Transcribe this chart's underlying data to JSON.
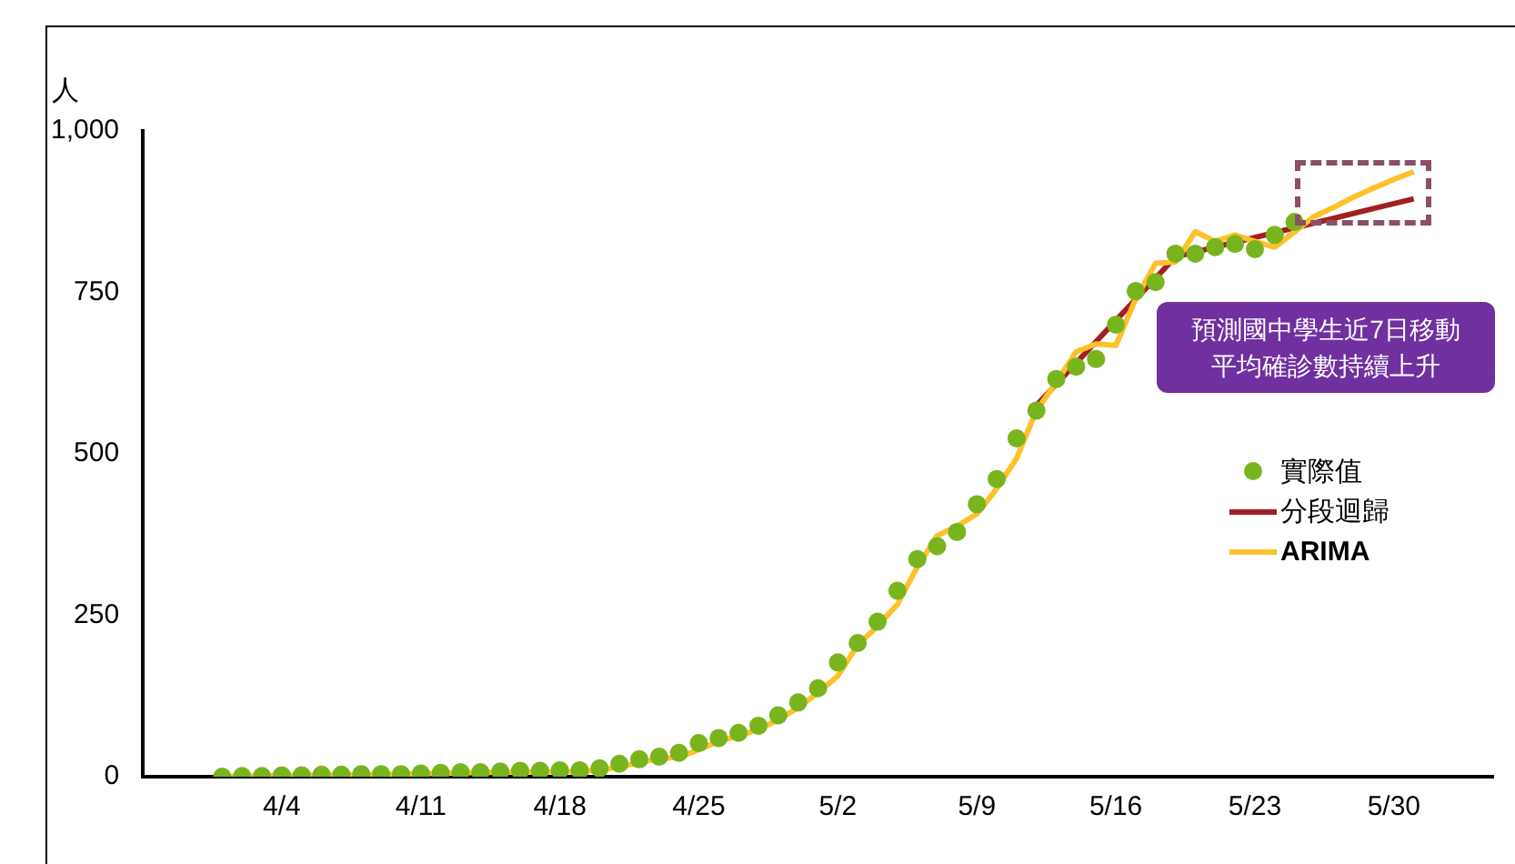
{
  "chart_data": {
    "type": "line",
    "ylabel": "人",
    "xlim": [
      "--03-28",
      "--06-04"
    ],
    "xticks": [
      {
        "value": "--04-04",
        "label": "4/4"
      },
      {
        "value": "--04-11",
        "label": "4/11"
      },
      {
        "value": "--04-18",
        "label": "4/18"
      },
      {
        "value": "--04-25",
        "label": "4/25"
      },
      {
        "value": "--05-02",
        "label": "5/2"
      },
      {
        "value": "--05-09",
        "label": "5/9"
      },
      {
        "value": "--05-16",
        "label": "5/16"
      },
      {
        "value": "--05-23",
        "label": "5/23"
      },
      {
        "value": "--05-30",
        "label": "5/30"
      }
    ],
    "ylim": [
      0,
      1000
    ],
    "yticks": [
      0,
      250,
      500,
      750,
      {
        "value": 1000,
        "label": "1,000"
      }
    ],
    "grid": false,
    "legend": "right",
    "annotations": [
      "預測國中學生近7日移動平均確診數持續上升"
    ],
    "series": [
      {
        "name": "實際值",
        "type": "scatter",
        "marker": "circle",
        "color": "#78b41e",
        "x": [
          "--04-01",
          "--04-02",
          "--04-03",
          "--04-04",
          "--04-05",
          "--04-06",
          "--04-07",
          "--04-08",
          "--04-09",
          "--04-10",
          "--04-11",
          "--04-12",
          "--04-13",
          "--04-14",
          "--04-15",
          "--04-16",
          "--04-17",
          "--04-18",
          "--04-19",
          "--04-20",
          "--04-21",
          "--04-22",
          "--04-23",
          "--04-24",
          "--04-25",
          "--04-26",
          "--04-27",
          "--04-28",
          "--04-29",
          "--04-30",
          "--05-01",
          "--05-02",
          "--05-03",
          "--05-04",
          "--05-05",
          "--05-06",
          "--05-07",
          "--05-08",
          "--05-09",
          "--05-10",
          "--05-11",
          "--05-12",
          "--05-13",
          "--05-14",
          "--05-15",
          "--05-16",
          "--05-17",
          "--05-18",
          "--05-19",
          "--05-20",
          "--05-21",
          "--05-22",
          "--05-23",
          "--05-24",
          "--05-25"
        ],
        "values": [
          0,
          1,
          1,
          2,
          2,
          3,
          3,
          4,
          4,
          4,
          5,
          6,
          7,
          7,
          8,
          9,
          9,
          10,
          10,
          13,
          20,
          27,
          31,
          37,
          52,
          60,
          68,
          79,
          95,
          115,
          137,
          177,
          207,
          240,
          288,
          337,
          357,
          379,
          422,
          461,
          524,
          567,
          616,
          635,
          647,
          700,
          752,
          766,
          810,
          810,
          820,
          825,
          817,
          839,
          859
        ]
      },
      {
        "name": "分段迴歸",
        "color": "#a31f1f",
        "x": [
          "--05-12",
          "--05-19",
          "--05-25",
          "--05-31"
        ],
        "values": [
          575,
          805,
          850,
          895
        ]
      },
      {
        "name": "ARIMA",
        "color": "#ffc12b",
        "x": [
          "--04-01",
          "--04-05",
          "--04-10",
          "--04-15",
          "--04-19",
          "--04-20",
          "--04-21",
          "--04-22",
          "--04-23",
          "--04-24",
          "--04-25",
          "--04-26",
          "--04-27",
          "--04-28",
          "--04-29",
          "--04-30",
          "--05-01",
          "--05-02",
          "--05-03",
          "--05-04",
          "--05-05",
          "--05-06",
          "--05-07",
          "--05-08",
          "--05-09",
          "--05-10",
          "--05-11",
          "--05-12",
          "--05-13",
          "--05-14",
          "--05-15",
          "--05-16",
          "--05-17",
          "--05-18",
          "--05-19",
          "--05-20",
          "--05-21",
          "--05-22",
          "--05-23",
          "--05-24",
          "--05-25",
          "--05-26",
          "--05-27",
          "--05-28",
          "--05-29",
          "--05-30",
          "--05-31"
        ],
        "values": [
          0,
          2,
          4,
          7,
          8,
          10,
          15,
          22,
          28,
          30,
          42,
          55,
          63,
          73,
          88,
          107,
          130,
          156,
          204,
          233,
          267,
          325,
          373,
          388,
          407,
          446,
          493,
          567,
          611,
          658,
          670,
          668,
          740,
          795,
          797,
          844,
          829,
          839,
          829,
          820,
          844,
          868,
          882,
          898,
          912,
          925,
          937
        ]
      }
    ]
  }
}
